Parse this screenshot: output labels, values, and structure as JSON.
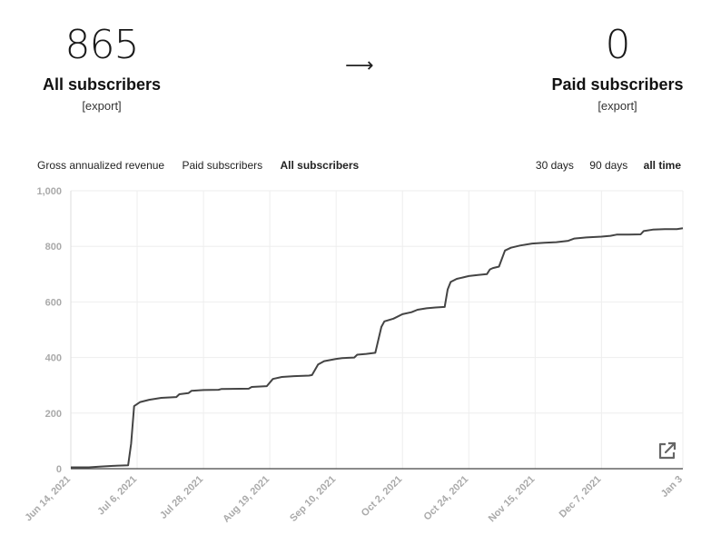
{
  "stats": {
    "all": {
      "value": "865",
      "label": "All subscribers",
      "export": "[export]"
    },
    "arrow": "⟶",
    "paid": {
      "value": "0",
      "label": "Paid subscribers",
      "export": "[export]"
    }
  },
  "metric_tabs": [
    {
      "label": "Gross annualized revenue",
      "active": false
    },
    {
      "label": "Paid subscribers",
      "active": false
    },
    {
      "label": "All subscribers",
      "active": true
    }
  ],
  "range_tabs": [
    {
      "label": "30 days",
      "active": false
    },
    {
      "label": "90 days",
      "active": false
    },
    {
      "label": "all time",
      "active": true
    }
  ],
  "icons": {
    "open_external": "external-link-icon"
  },
  "colors": {
    "line": "#444444",
    "grid": "#eeeeee",
    "axis_text": "#aaaaaa"
  },
  "chart_data": {
    "type": "line",
    "title": "",
    "xlabel": "",
    "ylabel": "",
    "x_ticks": [
      "Jun 14, 2021",
      "Jul 6, 2021",
      "Jul 28, 2021",
      "Aug 19, 2021",
      "Sep 10, 2021",
      "Oct 2, 2021",
      "Oct 24, 2021",
      "Nov 15, 2021",
      "Dec 7, 2021",
      "Jan 3"
    ],
    "y_ticks": [
      "0",
      "200",
      "400",
      "600",
      "800",
      "1,000"
    ],
    "ylim": [
      0,
      1000
    ],
    "xlim": [
      "2021-06-14",
      "2022-01-03"
    ],
    "grid": true,
    "series": [
      {
        "points": [
          [
            "2021-06-14",
            5
          ],
          [
            "2021-06-20",
            5
          ],
          [
            "2021-06-24",
            8
          ],
          [
            "2021-06-28",
            10
          ],
          [
            "2021-07-03",
            12
          ],
          [
            "2021-07-04",
            90
          ],
          [
            "2021-07-05",
            225
          ],
          [
            "2021-07-07",
            240
          ],
          [
            "2021-07-10",
            248
          ],
          [
            "2021-07-14",
            255
          ],
          [
            "2021-07-19",
            258
          ],
          [
            "2021-07-20",
            268
          ],
          [
            "2021-07-23",
            272
          ],
          [
            "2021-07-24",
            280
          ],
          [
            "2021-07-28",
            283
          ],
          [
            "2021-08-02",
            284
          ],
          [
            "2021-08-03",
            287
          ],
          [
            "2021-08-12",
            288
          ],
          [
            "2021-08-13",
            294
          ],
          [
            "2021-08-18",
            297
          ],
          [
            "2021-08-20",
            323
          ],
          [
            "2021-08-23",
            330
          ],
          [
            "2021-08-27",
            333
          ],
          [
            "2021-09-01",
            335
          ],
          [
            "2021-09-02",
            337
          ],
          [
            "2021-09-04",
            375
          ],
          [
            "2021-09-06",
            387
          ],
          [
            "2021-09-10",
            395
          ],
          [
            "2021-09-12",
            398
          ],
          [
            "2021-09-16",
            400
          ],
          [
            "2021-09-17",
            410
          ],
          [
            "2021-09-20",
            413
          ],
          [
            "2021-09-23",
            417
          ],
          [
            "2021-09-25",
            510
          ],
          [
            "2021-09-26",
            530
          ],
          [
            "2021-09-29",
            540
          ],
          [
            "2021-10-02",
            556
          ],
          [
            "2021-10-05",
            563
          ],
          [
            "2021-10-07",
            572
          ],
          [
            "2021-10-10",
            577
          ],
          [
            "2021-10-13",
            580
          ],
          [
            "2021-10-16",
            582
          ],
          [
            "2021-10-17",
            645
          ],
          [
            "2021-10-18",
            672
          ],
          [
            "2021-10-20",
            683
          ],
          [
            "2021-10-22",
            688
          ],
          [
            "2021-10-24",
            693
          ],
          [
            "2021-10-27",
            697
          ],
          [
            "2021-10-30",
            700
          ],
          [
            "2021-10-31",
            717
          ],
          [
            "2021-11-01",
            722
          ],
          [
            "2021-11-03",
            727
          ],
          [
            "2021-11-05",
            785
          ],
          [
            "2021-11-07",
            795
          ],
          [
            "2021-11-10",
            803
          ],
          [
            "2021-11-14",
            810
          ],
          [
            "2021-11-18",
            813
          ],
          [
            "2021-11-22",
            815
          ],
          [
            "2021-11-26",
            820
          ],
          [
            "2021-11-28",
            828
          ],
          [
            "2021-12-02",
            832
          ],
          [
            "2021-12-07",
            835
          ],
          [
            "2021-12-10",
            838
          ],
          [
            "2021-12-12",
            842
          ],
          [
            "2021-12-16",
            842
          ],
          [
            "2021-12-20",
            843
          ],
          [
            "2021-12-21",
            855
          ],
          [
            "2021-12-24",
            860
          ],
          [
            "2021-12-28",
            862
          ],
          [
            "2022-01-01",
            862
          ],
          [
            "2022-01-03",
            865
          ]
        ]
      }
    ]
  }
}
